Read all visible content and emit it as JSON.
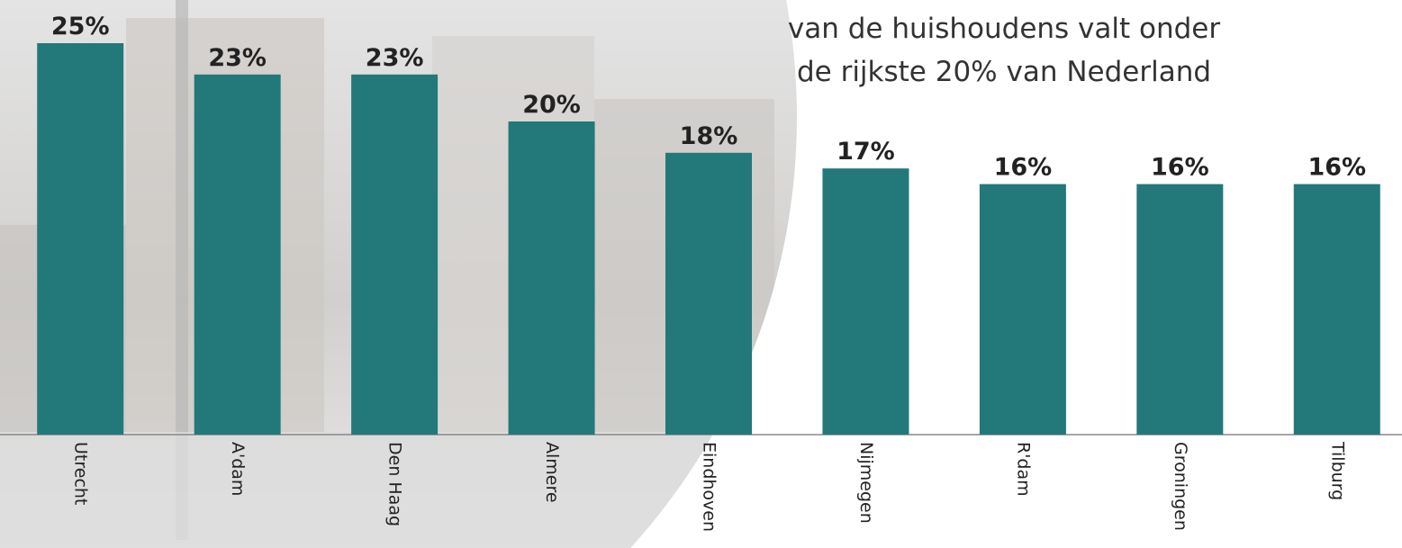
{
  "chart_data": {
    "type": "bar",
    "title": [
      "van de huishoudens valt onder",
      "de rijkste 20% van Nederland"
    ],
    "categories": [
      "Utrecht",
      "A'dam",
      "Den Haag",
      "Almere",
      "Eindhoven",
      "Nijmegen",
      "R'dam",
      "Groningen",
      "Tilburg"
    ],
    "values": [
      25,
      23,
      23,
      20,
      18,
      17,
      16,
      16,
      16
    ],
    "value_labels": [
      "25%",
      "23%",
      "23%",
      "20%",
      "18%",
      "17%",
      "16%",
      "16%",
      "16%"
    ],
    "color": "#23787a"
  }
}
